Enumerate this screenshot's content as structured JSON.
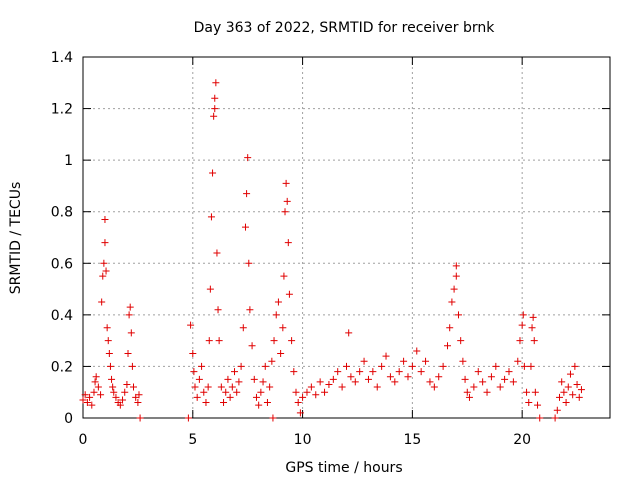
{
  "chart_data": {
    "type": "scatter",
    "title": "Day 363 of 2022, SRMTID for receiver brnk",
    "xlabel": "GPS time / hours",
    "ylabel": "SRMTID / TECUs",
    "xlim": [
      0,
      24
    ],
    "ylim": [
      0,
      1.4
    ],
    "xticks": [
      0,
      5,
      10,
      15,
      20
    ],
    "xtick_labels": [
      "0",
      "5",
      "10",
      "15",
      "20"
    ],
    "yticks": [
      0,
      0.2,
      0.4,
      0.6,
      0.8,
      1,
      1.2,
      1.4
    ],
    "ytick_labels": [
      "0",
      "0.2",
      "0.4",
      "0.6",
      "0.8",
      "1",
      "1.2",
      "1.4"
    ],
    "grid": true,
    "marker": "+",
    "color": "#e00000",
    "series": [
      {
        "name": "SRMTID",
        "points": [
          [
            0.0,
            0.07
          ],
          [
            0.1,
            0.09
          ],
          [
            0.2,
            0.06
          ],
          [
            0.3,
            0.08
          ],
          [
            0.4,
            0.05
          ],
          [
            0.5,
            0.1
          ],
          [
            0.55,
            0.14
          ],
          [
            0.6,
            0.16
          ],
          [
            0.7,
            0.12
          ],
          [
            0.8,
            0.09
          ],
          [
            0.85,
            0.45
          ],
          [
            0.9,
            0.55
          ],
          [
            0.95,
            0.6
          ],
          [
            1.0,
            0.77
          ],
          [
            1.0,
            0.68
          ],
          [
            1.05,
            0.57
          ],
          [
            1.1,
            0.35
          ],
          [
            1.15,
            0.3
          ],
          [
            1.2,
            0.25
          ],
          [
            1.25,
            0.2
          ],
          [
            1.3,
            0.15
          ],
          [
            1.35,
            0.12
          ],
          [
            1.4,
            0.1
          ],
          [
            1.5,
            0.08
          ],
          [
            1.6,
            0.06
          ],
          [
            1.7,
            0.05
          ],
          [
            1.8,
            0.07
          ],
          [
            1.9,
            0.1
          ],
          [
            2.0,
            0.13
          ],
          [
            2.05,
            0.25
          ],
          [
            2.1,
            0.4
          ],
          [
            2.15,
            0.43
          ],
          [
            2.2,
            0.33
          ],
          [
            2.25,
            0.2
          ],
          [
            2.3,
            0.12
          ],
          [
            2.4,
            0.08
          ],
          [
            2.5,
            0.06
          ],
          [
            2.55,
            0.09
          ],
          [
            2.6,
            0.0
          ],
          [
            4.8,
            0.0
          ],
          [
            4.9,
            0.36
          ],
          [
            5.0,
            0.25
          ],
          [
            5.05,
            0.18
          ],
          [
            5.1,
            0.12
          ],
          [
            5.2,
            0.08
          ],
          [
            5.3,
            0.15
          ],
          [
            5.4,
            0.2
          ],
          [
            5.5,
            0.1
          ],
          [
            5.6,
            0.06
          ],
          [
            5.7,
            0.12
          ],
          [
            5.75,
            0.3
          ],
          [
            5.8,
            0.5
          ],
          [
            5.85,
            0.78
          ],
          [
            5.9,
            0.95
          ],
          [
            5.95,
            1.17
          ],
          [
            6.0,
            1.2
          ],
          [
            6.0,
            1.24
          ],
          [
            6.05,
            1.3
          ],
          [
            6.1,
            0.64
          ],
          [
            6.15,
            0.42
          ],
          [
            6.2,
            0.3
          ],
          [
            6.3,
            0.12
          ],
          [
            6.4,
            0.06
          ],
          [
            6.5,
            0.1
          ],
          [
            6.6,
            0.15
          ],
          [
            6.7,
            0.08
          ],
          [
            6.8,
            0.12
          ],
          [
            6.9,
            0.18
          ],
          [
            7.0,
            0.1
          ],
          [
            7.1,
            0.14
          ],
          [
            7.2,
            0.2
          ],
          [
            7.3,
            0.35
          ],
          [
            7.4,
            0.74
          ],
          [
            7.45,
            0.87
          ],
          [
            7.5,
            1.01
          ],
          [
            7.55,
            0.6
          ],
          [
            7.6,
            0.42
          ],
          [
            7.7,
            0.28
          ],
          [
            7.8,
            0.15
          ],
          [
            7.9,
            0.08
          ],
          [
            8.0,
            0.05
          ],
          [
            8.1,
            0.1
          ],
          [
            8.2,
            0.14
          ],
          [
            8.3,
            0.2
          ],
          [
            8.4,
            0.06
          ],
          [
            8.5,
            0.12
          ],
          [
            8.6,
            0.22
          ],
          [
            8.65,
            0.0
          ],
          [
            8.7,
            0.3
          ],
          [
            8.8,
            0.4
          ],
          [
            8.9,
            0.45
          ],
          [
            9.0,
            0.25
          ],
          [
            9.1,
            0.35
          ],
          [
            9.15,
            0.55
          ],
          [
            9.2,
            0.8
          ],
          [
            9.25,
            0.91
          ],
          [
            9.3,
            0.84
          ],
          [
            9.35,
            0.68
          ],
          [
            9.4,
            0.48
          ],
          [
            9.5,
            0.3
          ],
          [
            9.6,
            0.18
          ],
          [
            9.7,
            0.1
          ],
          [
            9.8,
            0.06
          ],
          [
            9.9,
            0.02
          ],
          [
            10.0,
            0.08
          ],
          [
            10.2,
            0.1
          ],
          [
            10.4,
            0.12
          ],
          [
            10.6,
            0.09
          ],
          [
            10.8,
            0.14
          ],
          [
            11.0,
            0.1
          ],
          [
            11.2,
            0.13
          ],
          [
            11.4,
            0.15
          ],
          [
            11.6,
            0.18
          ],
          [
            11.8,
            0.12
          ],
          [
            12.0,
            0.2
          ],
          [
            12.1,
            0.33
          ],
          [
            12.2,
            0.16
          ],
          [
            12.4,
            0.14
          ],
          [
            12.6,
            0.18
          ],
          [
            12.8,
            0.22
          ],
          [
            13.0,
            0.15
          ],
          [
            13.2,
            0.18
          ],
          [
            13.4,
            0.12
          ],
          [
            13.6,
            0.2
          ],
          [
            13.8,
            0.24
          ],
          [
            14.0,
            0.16
          ],
          [
            14.2,
            0.14
          ],
          [
            14.4,
            0.18
          ],
          [
            14.6,
            0.22
          ],
          [
            14.8,
            0.16
          ],
          [
            15.0,
            0.2
          ],
          [
            15.2,
            0.26
          ],
          [
            15.4,
            0.18
          ],
          [
            15.6,
            0.22
          ],
          [
            15.8,
            0.14
          ],
          [
            16.0,
            0.12
          ],
          [
            16.2,
            0.16
          ],
          [
            16.4,
            0.2
          ],
          [
            16.6,
            0.28
          ],
          [
            16.7,
            0.35
          ],
          [
            16.8,
            0.45
          ],
          [
            16.9,
            0.5
          ],
          [
            17.0,
            0.55
          ],
          [
            17.0,
            0.59
          ],
          [
            17.1,
            0.4
          ],
          [
            17.2,
            0.3
          ],
          [
            17.3,
            0.22
          ],
          [
            17.4,
            0.15
          ],
          [
            17.5,
            0.1
          ],
          [
            17.6,
            0.08
          ],
          [
            17.8,
            0.12
          ],
          [
            18.0,
            0.18
          ],
          [
            18.2,
            0.14
          ],
          [
            18.4,
            0.1
          ],
          [
            18.6,
            0.16
          ],
          [
            18.8,
            0.2
          ],
          [
            19.0,
            0.12
          ],
          [
            19.2,
            0.15
          ],
          [
            19.4,
            0.18
          ],
          [
            19.6,
            0.14
          ],
          [
            19.8,
            0.22
          ],
          [
            19.9,
            0.3
          ],
          [
            20.0,
            0.36
          ],
          [
            20.05,
            0.4
          ],
          [
            20.1,
            0.2
          ],
          [
            20.2,
            0.1
          ],
          [
            20.3,
            0.06
          ],
          [
            20.4,
            0.2
          ],
          [
            20.45,
            0.35
          ],
          [
            20.5,
            0.39
          ],
          [
            20.55,
            0.3
          ],
          [
            20.6,
            0.1
          ],
          [
            20.7,
            0.05
          ],
          [
            20.8,
            0.0
          ],
          [
            21.5,
            0.0
          ],
          [
            21.6,
            0.03
          ],
          [
            21.7,
            0.08
          ],
          [
            21.8,
            0.14
          ],
          [
            21.9,
            0.1
          ],
          [
            22.0,
            0.06
          ],
          [
            22.1,
            0.12
          ],
          [
            22.2,
            0.17
          ],
          [
            22.3,
            0.09
          ],
          [
            22.4,
            0.2
          ],
          [
            22.5,
            0.13
          ],
          [
            22.6,
            0.08
          ],
          [
            22.7,
            0.11
          ]
        ]
      }
    ]
  }
}
